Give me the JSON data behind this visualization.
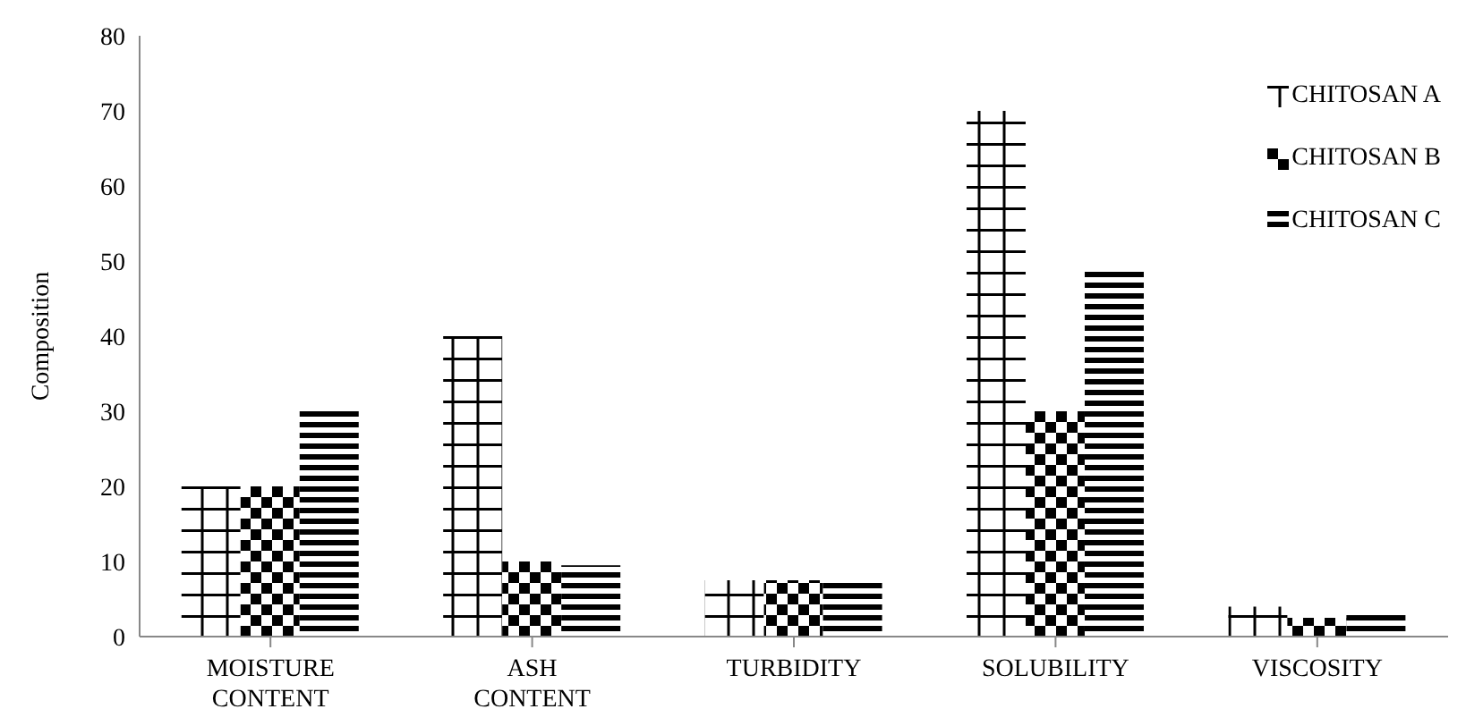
{
  "chart_data": {
    "type": "bar",
    "ylabel": "Composition",
    "categories": [
      "MOISTURE CONTENT",
      "ASH CONTENT",
      "TURBIDITY",
      "SOLUBILITY",
      "VISCOSITY"
    ],
    "series": [
      {
        "name": "CHITOSAN A",
        "color": "#000000",
        "values": [
          20,
          40,
          7.5,
          70,
          4
        ]
      },
      {
        "name": "CHITOSAN B",
        "color": "#000000",
        "values": [
          20,
          10,
          7.5,
          30,
          2.5
        ]
      },
      {
        "name": "CHITOSAN C",
        "color": "#000000",
        "values": [
          30,
          9.5,
          7.5,
          49,
          3.5
        ]
      }
    ],
    "ylim": [
      0,
      80
    ],
    "yticks": [
      0,
      10,
      20,
      30,
      40,
      50,
      60,
      70,
      80
    ],
    "grid": false,
    "legend": "top right"
  }
}
